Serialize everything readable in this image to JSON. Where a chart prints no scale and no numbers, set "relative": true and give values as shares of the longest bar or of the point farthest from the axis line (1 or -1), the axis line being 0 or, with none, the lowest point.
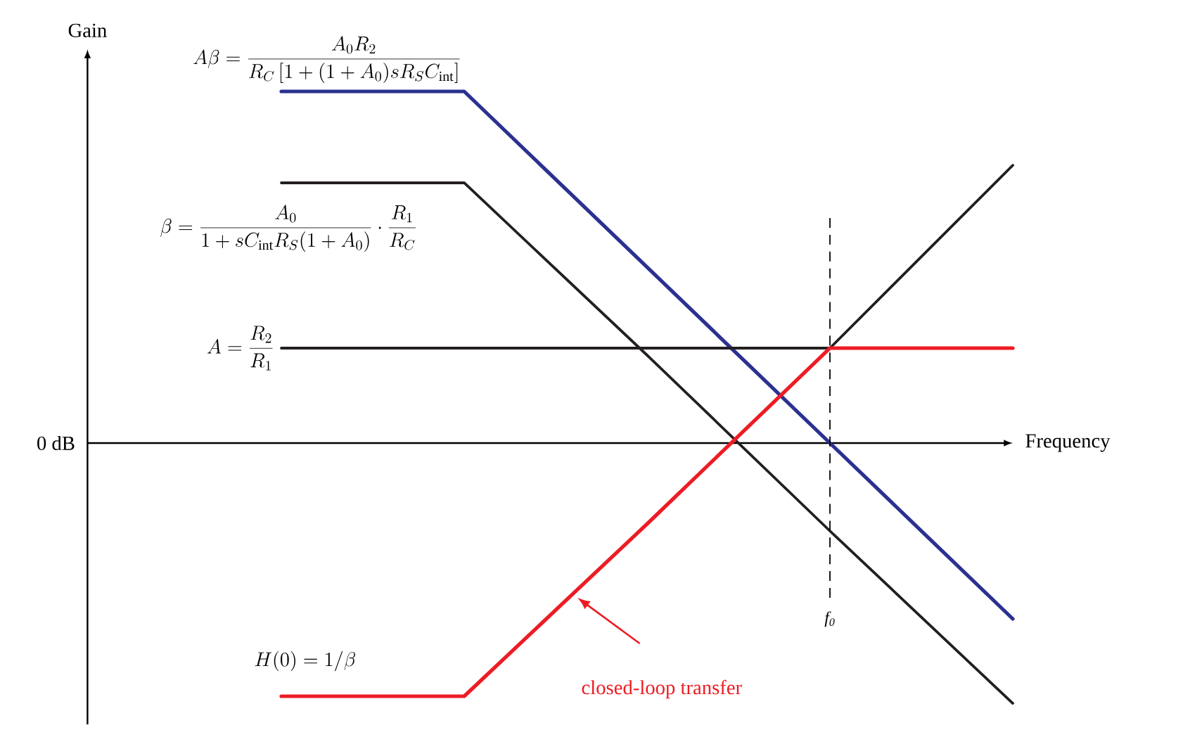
{
  "chart_data": {
    "type": "line",
    "relative": true,
    "xlabel": "Frequency",
    "ylabel": "Gain",
    "categories": [
      null,
      null,
      null,
      null,
      null
    ],
    "series": [
      {
        "name": "A\\beta=\\frac{A_0R_2}{R_C\\left[1+(1+A_0)sR_SC_{\\mathrm{int}}\\right]}",
        "color": "#2b3190",
        "values": [
          1.0,
          1.0,
          0.5,
          0.0,
          -0.5
        ]
      },
      {
        "name": "\\beta=\\frac{A_0}{1+sC_{\\mathrm{int}}R_S(1+A_0)}\\cdot\\frac{R_1}{R_C}",
        "color": "#231f20",
        "values": [
          0.74,
          0.74,
          0.25,
          -0.25,
          -0.74
        ]
      },
      {
        "name": "A=\\frac{R_2}{R_1}",
        "color": "#231f20",
        "values": [
          0.27,
          0.27,
          0.27,
          0.27,
          null
        ]
      },
      {
        "color": "#231f20",
        "values": [
          null,
          null,
          null,
          0.27,
          0.79
        ]
      },
      {
        "name": "H(0)=1/\\beta",
        "color": "#ed1c24",
        "values": [
          -0.72,
          -0.72,
          -0.23,
          0.27,
          0.27
        ]
      }
    ],
    "annotations": [
      "0 dB",
      "closed-loop transfer",
      "f$_{0}$"
    ]
  }
}
